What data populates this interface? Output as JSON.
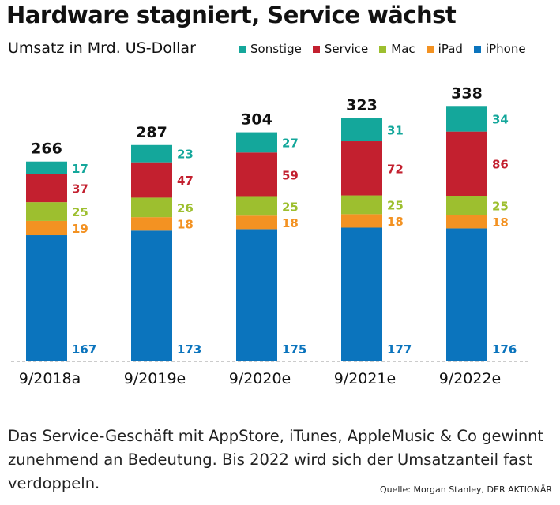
{
  "chart_data": {
    "type": "bar",
    "stacked": true,
    "title": "Hardware stagniert, Service wächst",
    "subtitle": "Umsatz in Mrd. US-Dollar",
    "categories": [
      "9/2018a",
      "9/2019e",
      "9/2020e",
      "9/2021e",
      "9/2022e"
    ],
    "totals": [
      266,
      287,
      304,
      323,
      338
    ],
    "series": [
      {
        "name": "iPhone",
        "color": "#0b74bd",
        "values": [
          167,
          173,
          175,
          177,
          176
        ]
      },
      {
        "name": "iPad",
        "color": "#f39222",
        "values": [
          19,
          18,
          18,
          18,
          18
        ]
      },
      {
        "name": "Mac",
        "color": "#9dbf2f",
        "values": [
          25,
          26,
          25,
          25,
          25
        ]
      },
      {
        "name": "Service",
        "color": "#c3202f",
        "values": [
          37,
          47,
          59,
          72,
          86
        ]
      },
      {
        "name": "Sonstige",
        "color": "#14a79b",
        "values": [
          17,
          23,
          27,
          31,
          34
        ]
      }
    ],
    "legend_order": [
      "Sonstige",
      "Service",
      "Mac",
      "iPad",
      "iPhone"
    ],
    "legend_placement": "top-right",
    "ylim": [
      0,
      350
    ]
  },
  "caption": "Das Service-Geschäft mit AppStore, iTunes, AppleMusic & Co gewinnt zunehmend an Bedeutung. Bis 2022 wird sich der Umsatzanteil fast verdoppeln.",
  "source": "Quelle: Morgan Stanley, DER AKTIONÄR"
}
